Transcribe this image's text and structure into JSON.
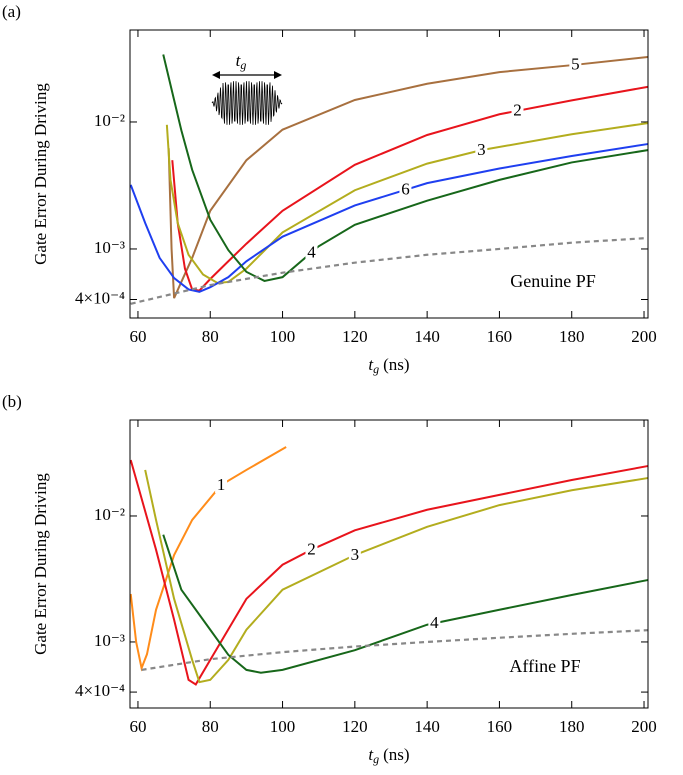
{
  "chart_data": [
    {
      "type": "line",
      "panel_label": "(a)",
      "annotation": "Genuine PF",
      "y_label": "Gate Error During Driving",
      "x_label": {
        "symbol": "t",
        "subscript": "g",
        "unit": "(ns)"
      },
      "inset_label": {
        "symbol": "t",
        "subscript": "g"
      },
      "log_y": true,
      "xlim": [
        57.8,
        201.1
      ],
      "ylim": [
        0.000286,
        0.053
      ],
      "xticks": [
        60,
        80,
        100,
        120,
        140,
        160,
        180,
        200
      ],
      "yticks": [
        {
          "value": 0.0004,
          "label": "4×10⁻⁴"
        },
        {
          "value": 0.001,
          "label": "10⁻³"
        },
        {
          "value": 0.01,
          "label": "10⁻²"
        }
      ],
      "series": [
        {
          "name": "5",
          "color": "#a8703f",
          "x": [
            68.5,
            69.3,
            70,
            72,
            75,
            80,
            90,
            100,
            120,
            140,
            160,
            180,
            201
          ],
          "values": [
            0.0062,
            0.001,
            0.00041,
            0.00055,
            0.00085,
            0.002,
            0.005,
            0.0087,
            0.0149,
            0.02,
            0.0247,
            0.028,
            0.0325
          ]
        },
        {
          "name": "2",
          "color": "#e8141c",
          "x": [
            69.5,
            71,
            73,
            75,
            77,
            80,
            85,
            90,
            100,
            120,
            140,
            160,
            180,
            201
          ],
          "values": [
            0.005,
            0.0016,
            0.0007,
            0.00048,
            0.00047,
            0.00058,
            0.0008,
            0.0011,
            0.002,
            0.0046,
            0.0079,
            0.0115,
            0.0148,
            0.0189
          ]
        },
        {
          "name": "3",
          "color": "#b3ad1e",
          "x": [
            68,
            69,
            71,
            74,
            78,
            82,
            85,
            90,
            100,
            120,
            140,
            155,
            180,
            201
          ],
          "values": [
            0.0095,
            0.0035,
            0.0016,
            0.0009,
            0.00063,
            0.00054,
            0.00055,
            0.0007,
            0.00135,
            0.0029,
            0.0047,
            0.006,
            0.008,
            0.0098
          ]
        },
        {
          "name": "6",
          "color": "#1f3ff0",
          "x": [
            58,
            62,
            66,
            70,
            74,
            77,
            80,
            85,
            90,
            100,
            120,
            140,
            160,
            180,
            201
          ],
          "values": [
            0.0032,
            0.0016,
            0.00085,
            0.00059,
            0.00048,
            0.00046,
            0.0005,
            0.0006,
            0.0008,
            0.00125,
            0.0022,
            0.0033,
            0.0043,
            0.0054,
            0.0067
          ]
        },
        {
          "name": "4",
          "color": "#17671a",
          "x": [
            67,
            70,
            72,
            75,
            80,
            85,
            90,
            95,
            100,
            110,
            120,
            140,
            160,
            180,
            201
          ],
          "values": [
            0.034,
            0.0149,
            0.0086,
            0.0042,
            0.0017,
            0.00098,
            0.00066,
            0.00056,
            0.0006,
            0.00105,
            0.00155,
            0.0024,
            0.0035,
            0.0048,
            0.006
          ]
        },
        {
          "color": "#888888",
          "dashed": true,
          "x": [
            58,
            80,
            100,
            120,
            140,
            160,
            180,
            201
          ],
          "values": [
            0.00037,
            0.00052,
            0.00065,
            0.00078,
            0.0009,
            0.001,
            0.00112,
            0.00122
          ]
        }
      ]
    },
    {
      "type": "line",
      "panel_label": "(b)",
      "annotation": "Affine PF",
      "y_label": "Gate Error During Driving",
      "x_label": {
        "symbol": "t",
        "subscript": "g",
        "unit": "(ns)"
      },
      "log_y": true,
      "xlim": [
        57.8,
        201.1
      ],
      "ylim": [
        0.000299,
        0.0578
      ],
      "xticks": [
        60,
        80,
        100,
        120,
        140,
        160,
        180,
        200
      ],
      "yticks": [
        {
          "value": 0.0004,
          "label": "4×10⁻⁴"
        },
        {
          "value": 0.001,
          "label": "10⁻³"
        },
        {
          "value": 0.01,
          "label": "10⁻²"
        }
      ],
      "series": [
        {
          "name": "1",
          "color": "#ff8c1a",
          "x": [
            58,
            59.5,
            61,
            62.5,
            65,
            70,
            75,
            83,
            90,
            101
          ],
          "values": [
            0.0024,
            0.001,
            0.00062,
            0.0008,
            0.0018,
            0.0049,
            0.0093,
            0.0176,
            0.0232,
            0.0353
          ]
        },
        {
          "name": "2",
          "color": "#e8141c",
          "x": [
            58,
            65,
            70,
            74,
            76,
            80,
            90,
            100,
            108,
            120,
            140,
            160,
            180,
            201
          ],
          "values": [
            0.0278,
            0.0054,
            0.0015,
            0.0005,
            0.00046,
            0.00072,
            0.0022,
            0.0041,
            0.0054,
            0.0077,
            0.0112,
            0.0147,
            0.0193,
            0.0249
          ]
        },
        {
          "name": "3",
          "color": "#b3ad1e",
          "x": [
            62,
            65,
            70,
            75,
            77,
            80,
            85,
            90,
            100,
            120,
            140,
            160,
            180,
            201
          ],
          "values": [
            0.0232,
            0.0093,
            0.0022,
            0.00072,
            0.00048,
            0.0005,
            0.00072,
            0.00125,
            0.0026,
            0.0049,
            0.0082,
            0.0122,
            0.016,
            0.02
          ]
        },
        {
          "name": "4",
          "color": "#17671a",
          "x": [
            67,
            72,
            80,
            85,
            90,
            94,
            100,
            120,
            140,
            160,
            180,
            201
          ],
          "values": [
            0.0071,
            0.0026,
            0.00125,
            0.00079,
            0.0006,
            0.00057,
            0.0006,
            0.00086,
            0.00137,
            0.0018,
            0.00236,
            0.0031
          ]
        },
        {
          "color": "#888888",
          "dashed": true,
          "x": [
            61,
            80,
            100,
            120,
            140,
            160,
            180,
            201
          ],
          "values": [
            0.0006,
            0.00073,
            0.00083,
            0.00092,
            0.001,
            0.00108,
            0.00116,
            0.00124
          ]
        }
      ]
    }
  ]
}
